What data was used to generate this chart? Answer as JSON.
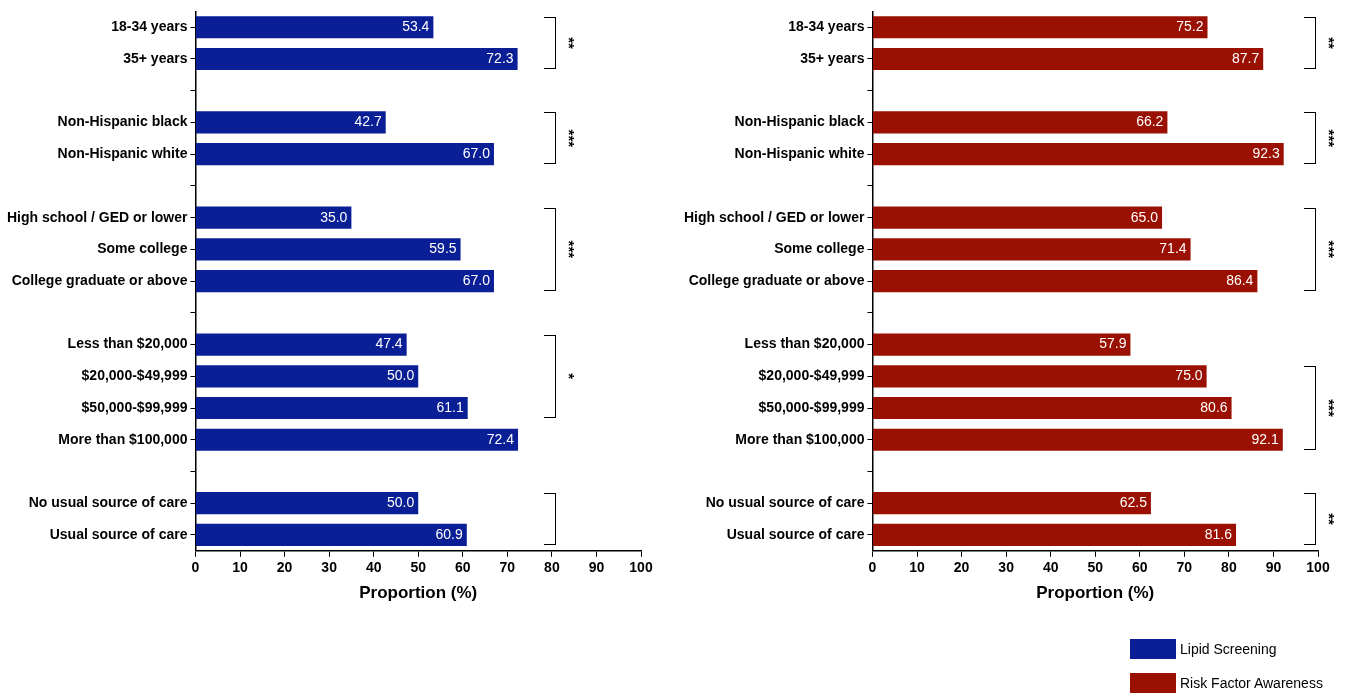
{
  "chart_data": [
    {
      "type": "bar",
      "orientation": "horizontal",
      "categories": [
        "18-34 years",
        "35+ years",
        null,
        "Non-Hispanic black",
        "Non-Hispanic white",
        null,
        "High school / GED or lower",
        "Some college",
        "College graduate or above",
        null,
        "Less than $20,000",
        "$20,000-$49,999",
        "$50,000-$99,999",
        "More than $100,000",
        null,
        "No usual source of care",
        "Usual source of care"
      ],
      "series": [
        {
          "name": "Lipid Screening",
          "color": "#0a1e96",
          "values": [
            53.4,
            72.3,
            null,
            42.7,
            67.0,
            null,
            35.0,
            59.5,
            67.0,
            null,
            47.4,
            50.0,
            61.1,
            72.4,
            null,
            50.0,
            60.9
          ],
          "value_labels": [
            "53.4",
            "72.3",
            null,
            "42.7",
            "67.0",
            null,
            "35.0",
            "59.5",
            "67.0",
            null,
            "47.4",
            "50.0",
            "61.1",
            "72.4",
            null,
            "50.0",
            "60.9"
          ]
        }
      ],
      "xlabel": "Proportion (%)",
      "xlim": [
        0,
        100
      ],
      "xticks": [
        0,
        10,
        20,
        30,
        40,
        50,
        60,
        70,
        80,
        90,
        100
      ],
      "grid": false,
      "legend": "bottom right",
      "annotations": [
        "**",
        "***",
        "***",
        "*"
      ]
    },
    {
      "type": "bar",
      "orientation": "horizontal",
      "categories": [
        "18-34 years",
        "35+ years",
        null,
        "Non-Hispanic black",
        "Non-Hispanic white",
        null,
        "High school / GED or lower",
        "Some college",
        "College graduate or above",
        null,
        "Less than $20,000",
        "$20,000-$49,999",
        "$50,000-$99,999",
        "More than $100,000",
        null,
        "No usual source of care",
        "Usual source of care"
      ],
      "series": [
        {
          "name": "Risk Factor Awareness",
          "color": "#9a1002",
          "values": [
            75.2,
            87.7,
            null,
            66.2,
            92.3,
            null,
            65.0,
            71.4,
            86.4,
            null,
            57.9,
            75.0,
            80.6,
            92.1,
            null,
            62.5,
            81.6
          ],
          "value_labels": [
            "75.2",
            "87.7",
            null,
            "66.2",
            "92.3",
            null,
            "65.0",
            "71.4",
            "86.4",
            null,
            "57.9",
            "75.0",
            "80.6",
            "92.1",
            null,
            "62.5",
            "81.6"
          ]
        }
      ],
      "xlabel": "Proportion (%)",
      "xlim": [
        0,
        100
      ],
      "xticks": [
        0,
        10,
        20,
        30,
        40,
        50,
        60,
        70,
        80,
        90,
        100
      ],
      "grid": false,
      "legend": "bottom right",
      "annotations": [
        "**",
        "***",
        "***",
        "***",
        "**"
      ]
    }
  ]
}
